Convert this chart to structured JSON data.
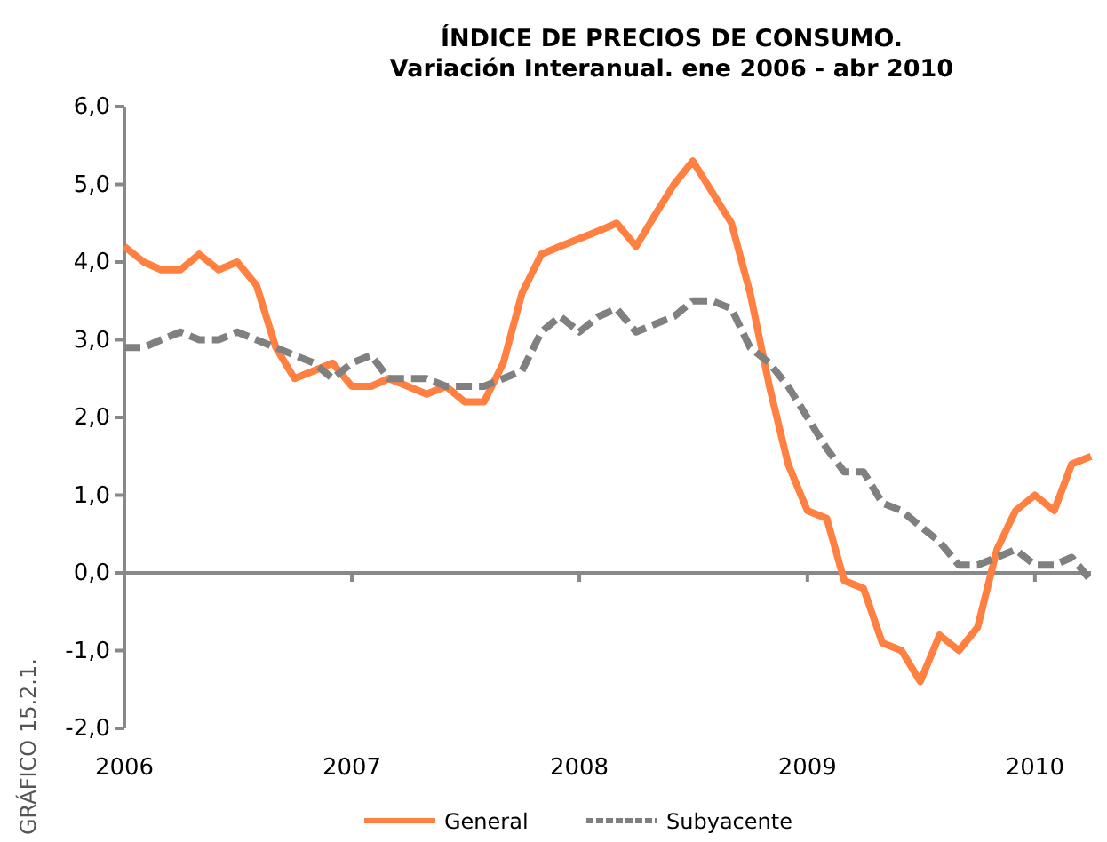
{
  "chart_data": {
    "type": "line",
    "title": "ÍNDICE DE PRECIOS DE CONSUMO.\nVariación Interanual. ene 2006 - abr 2010",
    "x": [
      "2006-01",
      "2006-02",
      "2006-03",
      "2006-04",
      "2006-05",
      "2006-06",
      "2006-07",
      "2006-08",
      "2006-09",
      "2006-10",
      "2006-11",
      "2006-12",
      "2007-01",
      "2007-02",
      "2007-03",
      "2007-04",
      "2007-05",
      "2007-06",
      "2007-07",
      "2007-08",
      "2007-09",
      "2007-10",
      "2007-11",
      "2007-12",
      "2008-01",
      "2008-02",
      "2008-03",
      "2008-04",
      "2008-05",
      "2008-06",
      "2008-07",
      "2008-08",
      "2008-09",
      "2008-10",
      "2008-11",
      "2008-12",
      "2009-01",
      "2009-02",
      "2009-03",
      "2009-04",
      "2009-05",
      "2009-06",
      "2009-07",
      "2009-08",
      "2009-09",
      "2009-10",
      "2009-11",
      "2009-12",
      "2010-01",
      "2010-02",
      "2010-03",
      "2010-04"
    ],
    "series": [
      {
        "name": "General",
        "color": "#ff8040",
        "line_style": "solid",
        "values": [
          4.2,
          4.0,
          3.9,
          3.9,
          4.1,
          3.9,
          4.0,
          3.7,
          2.9,
          2.5,
          2.6,
          2.7,
          2.4,
          2.4,
          2.5,
          2.4,
          2.3,
          2.4,
          2.2,
          2.2,
          2.7,
          3.6,
          4.1,
          4.2,
          4.3,
          4.4,
          4.5,
          4.2,
          4.6,
          5.0,
          5.3,
          4.9,
          4.5,
          3.6,
          2.4,
          1.4,
          0.8,
          0.7,
          -0.1,
          -0.2,
          -0.9,
          -1.0,
          -1.4,
          -0.8,
          -1.0,
          -0.7,
          0.3,
          0.8,
          1.0,
          0.8,
          1.4,
          1.5
        ]
      },
      {
        "name": "Subyacente",
        "color": "#808080",
        "line_style": "dashed",
        "values": [
          2.9,
          2.9,
          3.0,
          3.1,
          3.0,
          3.0,
          3.1,
          3.0,
          2.9,
          2.8,
          2.7,
          2.5,
          2.7,
          2.8,
          2.5,
          2.5,
          2.5,
          2.4,
          2.4,
          2.4,
          2.5,
          2.6,
          3.1,
          3.3,
          3.1,
          3.3,
          3.4,
          3.1,
          3.2,
          3.3,
          3.5,
          3.5,
          3.4,
          2.9,
          2.7,
          2.4,
          2.0,
          1.6,
          1.3,
          1.3,
          0.9,
          0.8,
          0.6,
          0.4,
          0.1,
          0.1,
          0.2,
          0.3,
          0.1,
          0.1,
          0.2,
          -0.1
        ]
      }
    ],
    "xlim": [
      "2006-01",
      "2010-04"
    ],
    "xticks": [
      {
        "value": "2006-01",
        "label": "2006"
      },
      {
        "value": "2007-01",
        "label": "2007"
      },
      {
        "value": "2008-01",
        "label": "2008"
      },
      {
        "value": "2009-01",
        "label": "2009"
      },
      {
        "value": "2010-01",
        "label": "2010"
      }
    ],
    "ylim": [
      -2,
      6
    ],
    "yticks": [
      {
        "value": -2,
        "label": "-2,0"
      },
      {
        "value": -1,
        "label": "-1,0"
      },
      {
        "value": 0,
        "label": "0,0"
      },
      {
        "value": 1,
        "label": "1,0"
      },
      {
        "value": 2,
        "label": "2,0"
      },
      {
        "value": 3,
        "label": "3,0"
      },
      {
        "value": 4,
        "label": "4,0"
      },
      {
        "value": 5,
        "label": "5,0"
      },
      {
        "value": 6,
        "label": "6,0"
      }
    ],
    "legend": "bottom",
    "marker": "none",
    "annotations": [
      "GRÁFICO 15.2.1."
    ]
  }
}
